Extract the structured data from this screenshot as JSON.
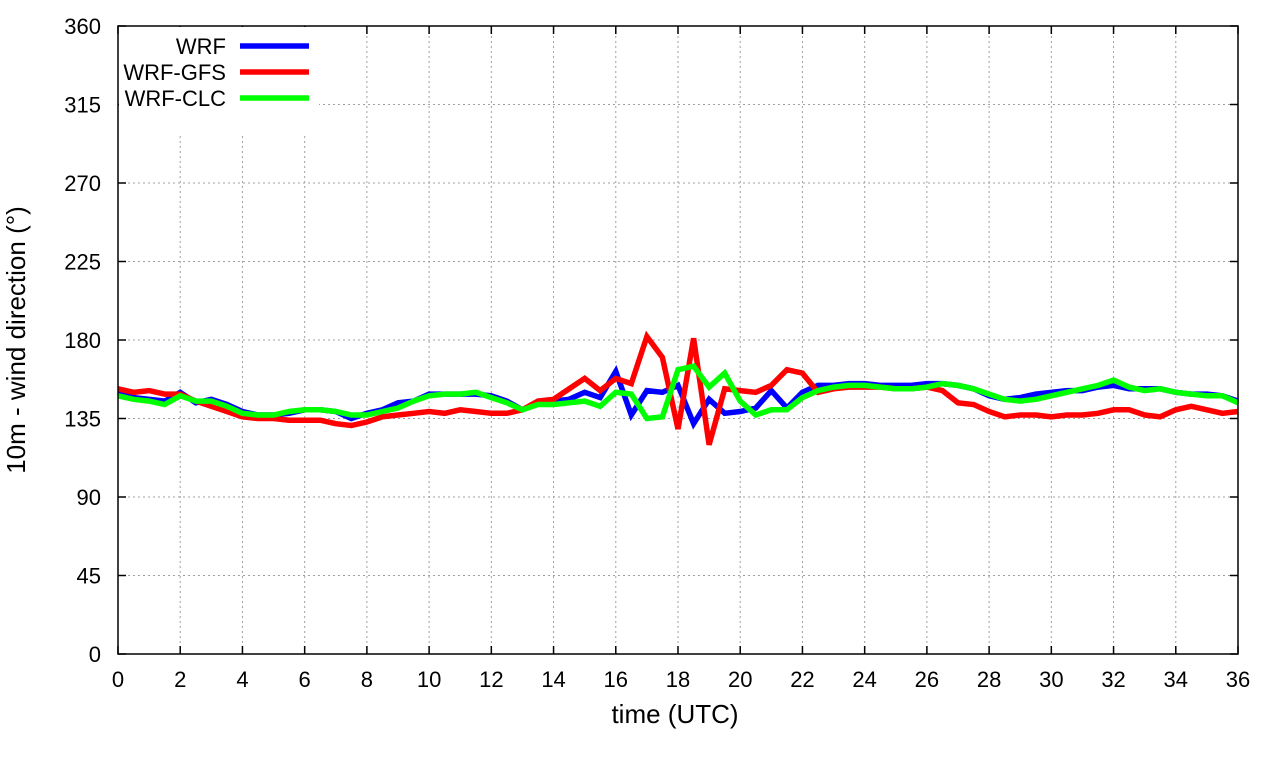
{
  "chart_data": {
    "type": "line",
    "title": "",
    "xlabel": "time (UTC)",
    "ylabel": "10m - wind direction (°)",
    "xlim": [
      0,
      36
    ],
    "ylim": [
      0,
      360
    ],
    "xticks": [
      0,
      2,
      4,
      6,
      8,
      10,
      12,
      14,
      16,
      18,
      20,
      22,
      24,
      26,
      28,
      30,
      32,
      34,
      36
    ],
    "yticks": [
      0,
      45,
      90,
      135,
      180,
      225,
      270,
      315,
      360
    ],
    "grid": true,
    "legend_position": "top-left",
    "series": [
      {
        "name": "WRF",
        "color": "#0000ff",
        "points": [
          [
            0,
            150
          ],
          [
            0.5,
            147
          ],
          [
            1,
            146
          ],
          [
            1.5,
            145
          ],
          [
            2,
            150
          ],
          [
            2.5,
            144
          ],
          [
            3,
            146
          ],
          [
            3.5,
            143
          ],
          [
            4,
            139
          ],
          [
            4.5,
            137
          ],
          [
            5,
            137
          ],
          [
            5.5,
            138
          ],
          [
            6,
            140
          ],
          [
            6.5,
            140
          ],
          [
            7,
            139
          ],
          [
            7.5,
            135
          ],
          [
            8,
            138
          ],
          [
            8.5,
            140
          ],
          [
            9,
            144
          ],
          [
            9.5,
            145
          ],
          [
            10,
            149
          ],
          [
            10.5,
            149
          ],
          [
            11,
            149
          ],
          [
            11.5,
            149
          ],
          [
            12,
            148
          ],
          [
            12.5,
            145
          ],
          [
            13,
            140
          ],
          [
            13.5,
            144
          ],
          [
            14,
            145
          ],
          [
            14.5,
            146
          ],
          [
            15,
            150
          ],
          [
            15.5,
            147
          ],
          [
            16,
            162
          ],
          [
            16.5,
            137
          ],
          [
            17,
            151
          ],
          [
            17.5,
            150
          ],
          [
            18,
            154
          ],
          [
            18.5,
            132
          ],
          [
            19,
            146
          ],
          [
            19.5,
            138
          ],
          [
            20,
            139
          ],
          [
            20.5,
            141
          ],
          [
            21,
            151
          ],
          [
            21.5,
            141
          ],
          [
            22,
            150
          ],
          [
            22.5,
            154
          ],
          [
            23,
            154
          ],
          [
            23.5,
            155
          ],
          [
            24,
            155
          ],
          [
            24.5,
            154
          ],
          [
            25,
            154
          ],
          [
            25.5,
            154
          ],
          [
            26,
            155
          ],
          [
            26.5,
            155
          ],
          [
            27,
            154
          ],
          [
            27.5,
            152
          ],
          [
            28,
            148
          ],
          [
            28.5,
            146
          ],
          [
            29,
            147
          ],
          [
            29.5,
            149
          ],
          [
            30,
            150
          ],
          [
            30.5,
            151
          ],
          [
            31,
            151
          ],
          [
            31.5,
            153
          ],
          [
            32,
            154
          ],
          [
            32.5,
            152
          ],
          [
            33,
            152
          ],
          [
            33.5,
            152
          ],
          [
            34,
            150
          ],
          [
            34.5,
            149
          ],
          [
            35,
            149
          ],
          [
            35.5,
            148
          ],
          [
            36,
            145
          ]
        ]
      },
      {
        "name": "WRF-GFS",
        "color": "#ff0000",
        "points": [
          [
            0,
            152
          ],
          [
            0.5,
            150
          ],
          [
            1,
            151
          ],
          [
            1.5,
            149
          ],
          [
            2,
            149
          ],
          [
            2.5,
            145
          ],
          [
            3,
            142
          ],
          [
            3.5,
            139
          ],
          [
            4,
            136
          ],
          [
            4.5,
            135
          ],
          [
            5,
            135
          ],
          [
            5.5,
            134
          ],
          [
            6,
            134
          ],
          [
            6.5,
            134
          ],
          [
            7,
            132
          ],
          [
            7.5,
            131
          ],
          [
            8,
            133
          ],
          [
            8.5,
            136
          ],
          [
            9,
            137
          ],
          [
            9.5,
            138
          ],
          [
            10,
            139
          ],
          [
            10.5,
            138
          ],
          [
            11,
            140
          ],
          [
            11.5,
            139
          ],
          [
            12,
            138
          ],
          [
            12.5,
            138
          ],
          [
            13,
            140
          ],
          [
            13.5,
            145
          ],
          [
            14,
            146
          ],
          [
            14.5,
            152
          ],
          [
            15,
            158
          ],
          [
            15.5,
            151
          ],
          [
            16,
            158
          ],
          [
            16.5,
            155
          ],
          [
            17,
            182
          ],
          [
            17.5,
            170
          ],
          [
            18,
            129
          ],
          [
            18.5,
            181
          ],
          [
            19,
            120
          ],
          [
            19.5,
            152
          ],
          [
            20,
            151
          ],
          [
            20.5,
            150
          ],
          [
            21,
            154
          ],
          [
            21.5,
            163
          ],
          [
            22,
            161
          ],
          [
            22.5,
            150
          ],
          [
            23,
            152
          ],
          [
            23.5,
            153
          ],
          [
            24,
            153
          ],
          [
            24.5,
            153
          ],
          [
            25,
            152
          ],
          [
            25.5,
            152
          ],
          [
            26,
            153
          ],
          [
            26.5,
            151
          ],
          [
            27,
            144
          ],
          [
            27.5,
            143
          ],
          [
            28,
            139
          ],
          [
            28.5,
            136
          ],
          [
            29,
            137
          ],
          [
            29.5,
            137
          ],
          [
            30,
            136
          ],
          [
            30.5,
            137
          ],
          [
            31,
            137
          ],
          [
            31.5,
            138
          ],
          [
            32,
            140
          ],
          [
            32.5,
            140
          ],
          [
            33,
            137
          ],
          [
            33.5,
            136
          ],
          [
            34,
            140
          ],
          [
            34.5,
            142
          ],
          [
            35,
            140
          ],
          [
            35.5,
            138
          ],
          [
            36,
            139
          ]
        ]
      },
      {
        "name": "WRF-CLC",
        "color": "#00ff00",
        "points": [
          [
            0,
            148
          ],
          [
            0.5,
            146
          ],
          [
            1,
            145
          ],
          [
            1.5,
            143
          ],
          [
            2,
            148
          ],
          [
            2.5,
            145
          ],
          [
            3,
            145
          ],
          [
            3.5,
            142
          ],
          [
            4,
            138
          ],
          [
            4.5,
            137
          ],
          [
            5,
            137
          ],
          [
            5.5,
            139
          ],
          [
            6,
            140
          ],
          [
            6.5,
            140
          ],
          [
            7,
            139
          ],
          [
            7.5,
            137
          ],
          [
            8,
            137
          ],
          [
            8.5,
            139
          ],
          [
            9,
            141
          ],
          [
            9.5,
            145
          ],
          [
            10,
            148
          ],
          [
            10.5,
            149
          ],
          [
            11,
            149
          ],
          [
            11.5,
            150
          ],
          [
            12,
            147
          ],
          [
            12.5,
            144
          ],
          [
            13,
            140
          ],
          [
            13.5,
            143
          ],
          [
            14,
            143
          ],
          [
            14.5,
            144
          ],
          [
            15,
            145
          ],
          [
            15.5,
            142
          ],
          [
            16,
            150
          ],
          [
            16.5,
            149
          ],
          [
            17,
            135
          ],
          [
            17.5,
            136
          ],
          [
            18,
            163
          ],
          [
            18.5,
            165
          ],
          [
            19,
            153
          ],
          [
            19.5,
            161
          ],
          [
            20,
            145
          ],
          [
            20.5,
            137
          ],
          [
            21,
            140
          ],
          [
            21.5,
            140
          ],
          [
            22,
            147
          ],
          [
            22.5,
            151
          ],
          [
            23,
            153
          ],
          [
            23.5,
            154
          ],
          [
            24,
            154
          ],
          [
            24.5,
            153
          ],
          [
            25,
            152
          ],
          [
            25.5,
            152
          ],
          [
            26,
            153
          ],
          [
            26.5,
            155
          ],
          [
            27,
            154
          ],
          [
            27.5,
            152
          ],
          [
            28,
            149
          ],
          [
            28.5,
            146
          ],
          [
            29,
            145
          ],
          [
            29.5,
            146
          ],
          [
            30,
            148
          ],
          [
            30.5,
            150
          ],
          [
            31,
            152
          ],
          [
            31.5,
            154
          ],
          [
            32,
            157
          ],
          [
            32.5,
            153
          ],
          [
            33,
            151
          ],
          [
            33.5,
            152
          ],
          [
            34,
            150
          ],
          [
            34.5,
            149
          ],
          [
            35,
            148
          ],
          [
            35.5,
            148
          ],
          [
            36,
            144
          ]
        ]
      }
    ]
  }
}
